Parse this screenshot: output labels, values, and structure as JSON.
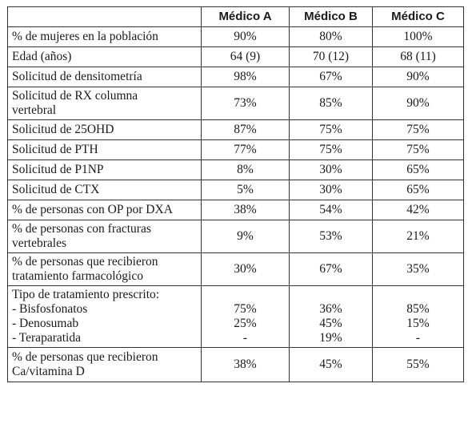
{
  "headers": [
    "",
    "Médico A",
    "Médico B",
    "Médico C"
  ],
  "rows": [
    {
      "label": "% de mujeres en la población",
      "a": "90%",
      "b": "80%",
      "c": "100%"
    },
    {
      "label": "Edad (años)",
      "a": "64 (9)",
      "b": "70 (12)",
      "c": "68 (11)"
    },
    {
      "label": "Solicitud de densitometría",
      "a": "98%",
      "b": "67%",
      "c": "90%"
    },
    {
      "label_lines": [
        "Solicitud de RX columna",
        "vertebral"
      ],
      "a": "73%",
      "b": "85%",
      "c": "90%"
    },
    {
      "label": "Solicitud de 25OHD",
      "a": "87%",
      "b": "75%",
      "c": "75%"
    },
    {
      "label": "Solicitud de PTH",
      "a": "77%",
      "b": "75%",
      "c": "75%"
    },
    {
      "label": "Solicitud de P1NP",
      "a": "8%",
      "b": "30%",
      "c": "65%"
    },
    {
      "label": "Solicitud de CTX",
      "a": "5%",
      "b": "30%",
      "c": "65%"
    },
    {
      "label": "% de personas con OP por DXA",
      "a": "38%",
      "b": "54%",
      "c": "42%"
    },
    {
      "label_lines": [
        "% de personas con fracturas",
        "vertebrales"
      ],
      "a": "9%",
      "b": "53%",
      "c": "21%"
    },
    {
      "label_lines": [
        "% de personas que recibieron",
        "tratamiento farmacológico"
      ],
      "a": "30%",
      "b": "67%",
      "c": "35%"
    }
  ],
  "treatment": {
    "title": "Tipo de tratamiento prescrito:",
    "items": [
      {
        "label": "- Bisfosfonatos",
        "a": "75%",
        "b": "36%",
        "c": "85%"
      },
      {
        "label": "- Denosumab",
        "a": "25%",
        "b": "45%",
        "c": "15%"
      },
      {
        "label": "- Teraparatida",
        "a": "-",
        "b": "19%",
        "c": "-"
      }
    ]
  },
  "last_row": {
    "label_lines": [
      "% de personas que recibieron",
      "Ca/vitamina D"
    ],
    "a": "38%",
    "b": "45%",
    "c": "55%"
  }
}
